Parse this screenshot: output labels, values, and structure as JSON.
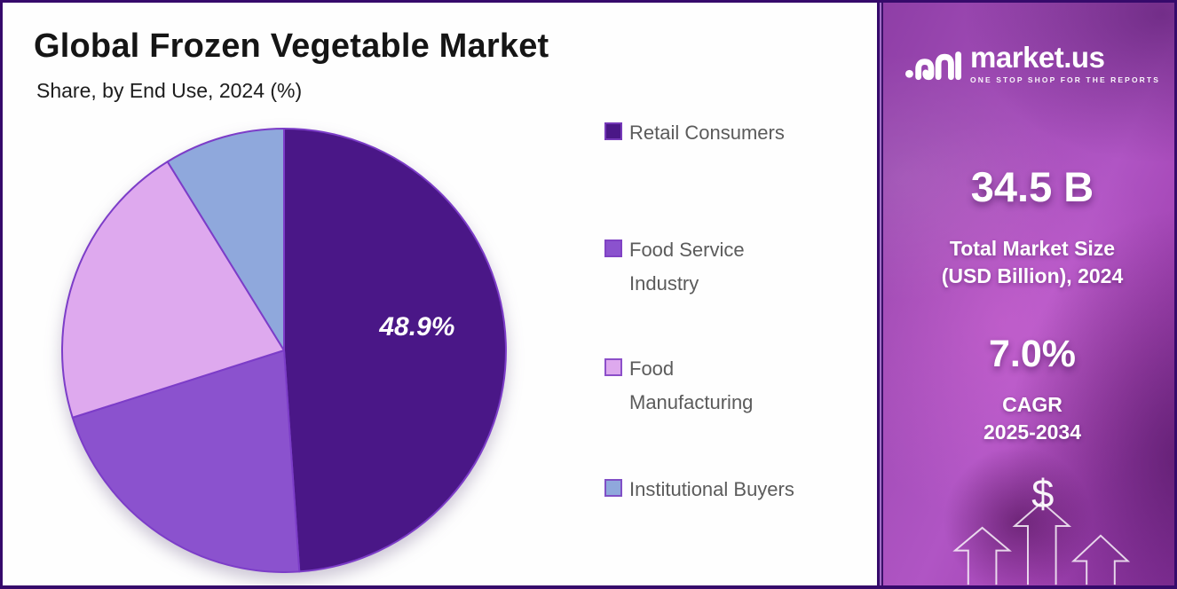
{
  "page": {
    "title": "Global Frozen Vegetable Market",
    "subtitle": "Share, by End Use, 2024 (%)"
  },
  "chart_data": {
    "type": "pie",
    "title": "Global Frozen Vegetable Market",
    "subtitle": "Share, by End Use, 2024 (%)",
    "categories": [
      "Retail Consumers",
      "Food Service Industry",
      "Food Manufacturing",
      "Institutional Buyers"
    ],
    "values": [
      48.9,
      21.2,
      21.1,
      8.8
    ],
    "data_labels": [
      "48.9%",
      "",
      "",
      ""
    ],
    "colors": [
      "#4A1787",
      "#8B52CE",
      "#DEA9EE",
      "#8FA8DC"
    ],
    "slice_stroke": "#7C3DC8",
    "start_angle_deg": 0,
    "direction": "clockwise",
    "legend_position": "right"
  },
  "legend": {
    "items": [
      {
        "lines": [
          "Retail Consumers"
        ]
      },
      {
        "lines": [
          "Food Service",
          "Industry"
        ]
      },
      {
        "lines": [
          "Food",
          "Manufacturing"
        ]
      },
      {
        "lines": [
          "Institutional Buyers"
        ]
      }
    ]
  },
  "sidebar": {
    "brand": {
      "name": "market.us",
      "tagline": "ONE STOP SHOP FOR THE REPORTS"
    },
    "market_size": {
      "value": "34.5 B",
      "label_line1": "Total Market Size",
      "label_line2": "(USD Billion), 2024"
    },
    "cagr": {
      "value": "7.0%",
      "label_line1": "CAGR",
      "label_line2": "2025-2034"
    },
    "currency_symbol": "$"
  },
  "colors": {
    "frame_border": "#360A6B",
    "sidebar_purple": "#A84FB9",
    "legend_text": "#5B5B5B"
  }
}
